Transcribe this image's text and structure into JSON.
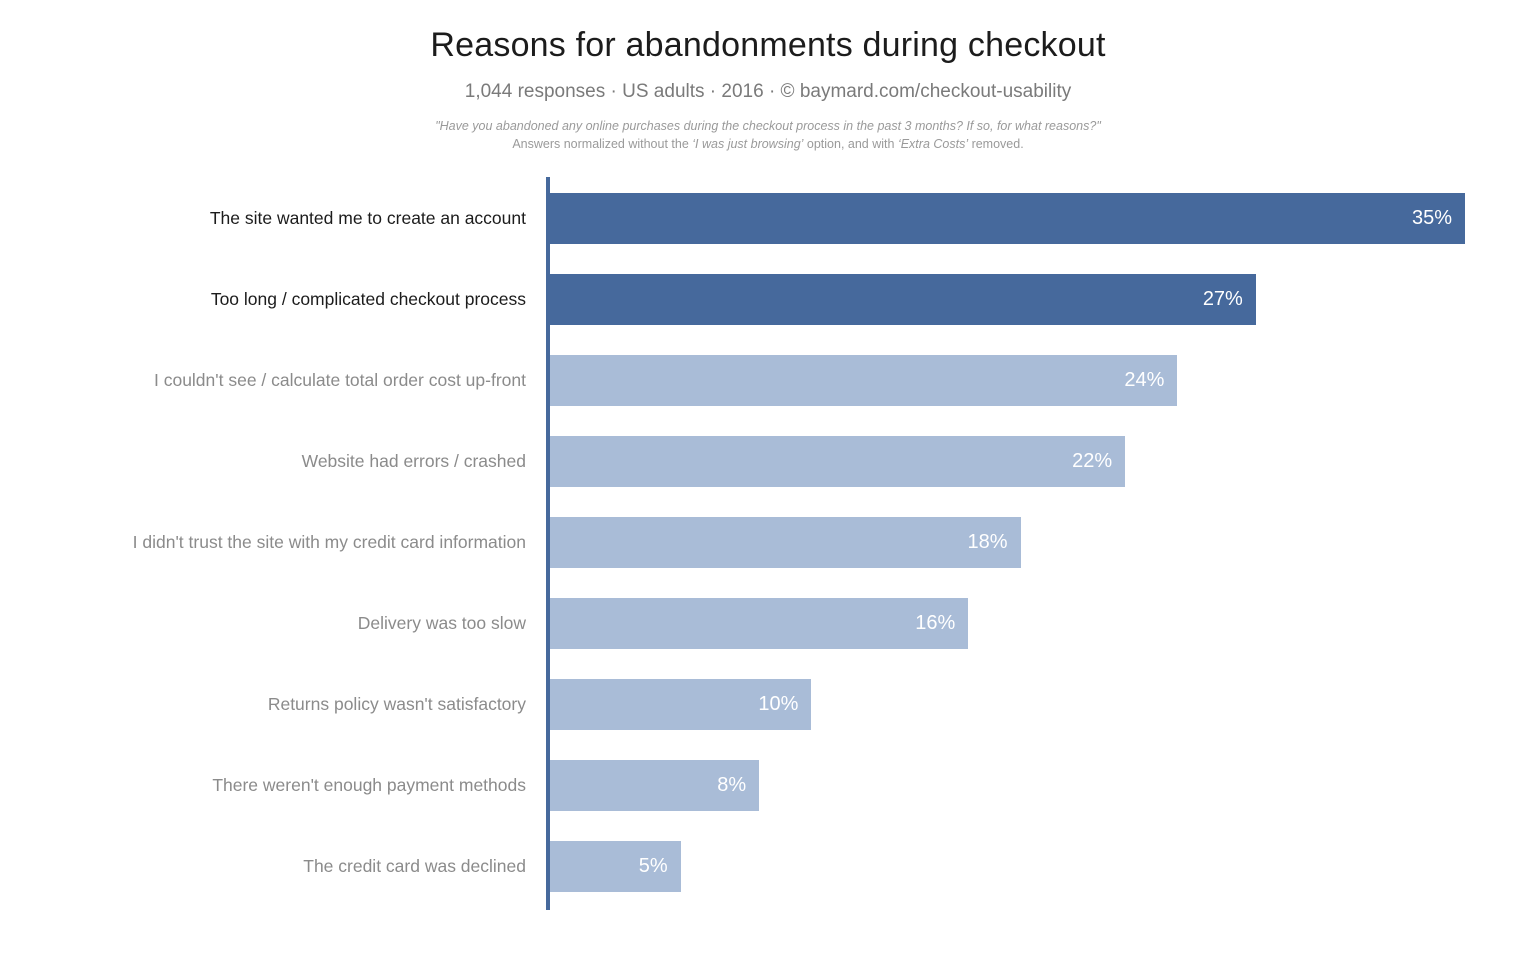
{
  "header": {
    "title": "Reasons for abandonments during checkout",
    "subtitle": "1,044 responses  ·  US adults  ·  2016  ·  ©  baymard.com/checkout-usability",
    "note_line1": "\"Have you abandoned any online purchases during the checkout process in the past 3 months? If so, for what reasons?\"",
    "note_line2_prefix": "Answers normalized without the ",
    "note_line2_italic1": "‘I was just browsing’",
    "note_line2_mid": " option, and with ",
    "note_line2_italic2": "‘Extra Costs’",
    "note_line2_suffix": " removed."
  },
  "chart_data": {
    "type": "bar",
    "orientation": "horizontal",
    "title": "Reasons for abandonments during checkout",
    "categories": [
      "The site wanted me to create an account",
      "Too long / complicated checkout process",
      "I couldn't see / calculate total order cost up-front",
      "Website had errors / crashed",
      "I didn't trust the site with my credit card information",
      "Delivery was too slow",
      "Returns policy wasn't satisfactory",
      "There weren't enough payment methods",
      "The credit card was declined"
    ],
    "values": [
      35,
      27,
      24,
      22,
      18,
      16,
      10,
      8,
      5
    ],
    "value_labels": [
      "35%",
      "27%",
      "24%",
      "22%",
      "18%",
      "16%",
      "10%",
      "8%",
      "5%"
    ],
    "xlim": [
      0,
      35
    ],
    "highlight_first_n": 2,
    "grid": false,
    "legend": false,
    "colors": {
      "bar_dark": "#46699C",
      "bar_light": "#A9BCD7",
      "axis": "#46699C",
      "label_dark": "#1C1C1C",
      "label_gray": "#8B8B8B",
      "value_text": "#FFFFFF"
    }
  }
}
